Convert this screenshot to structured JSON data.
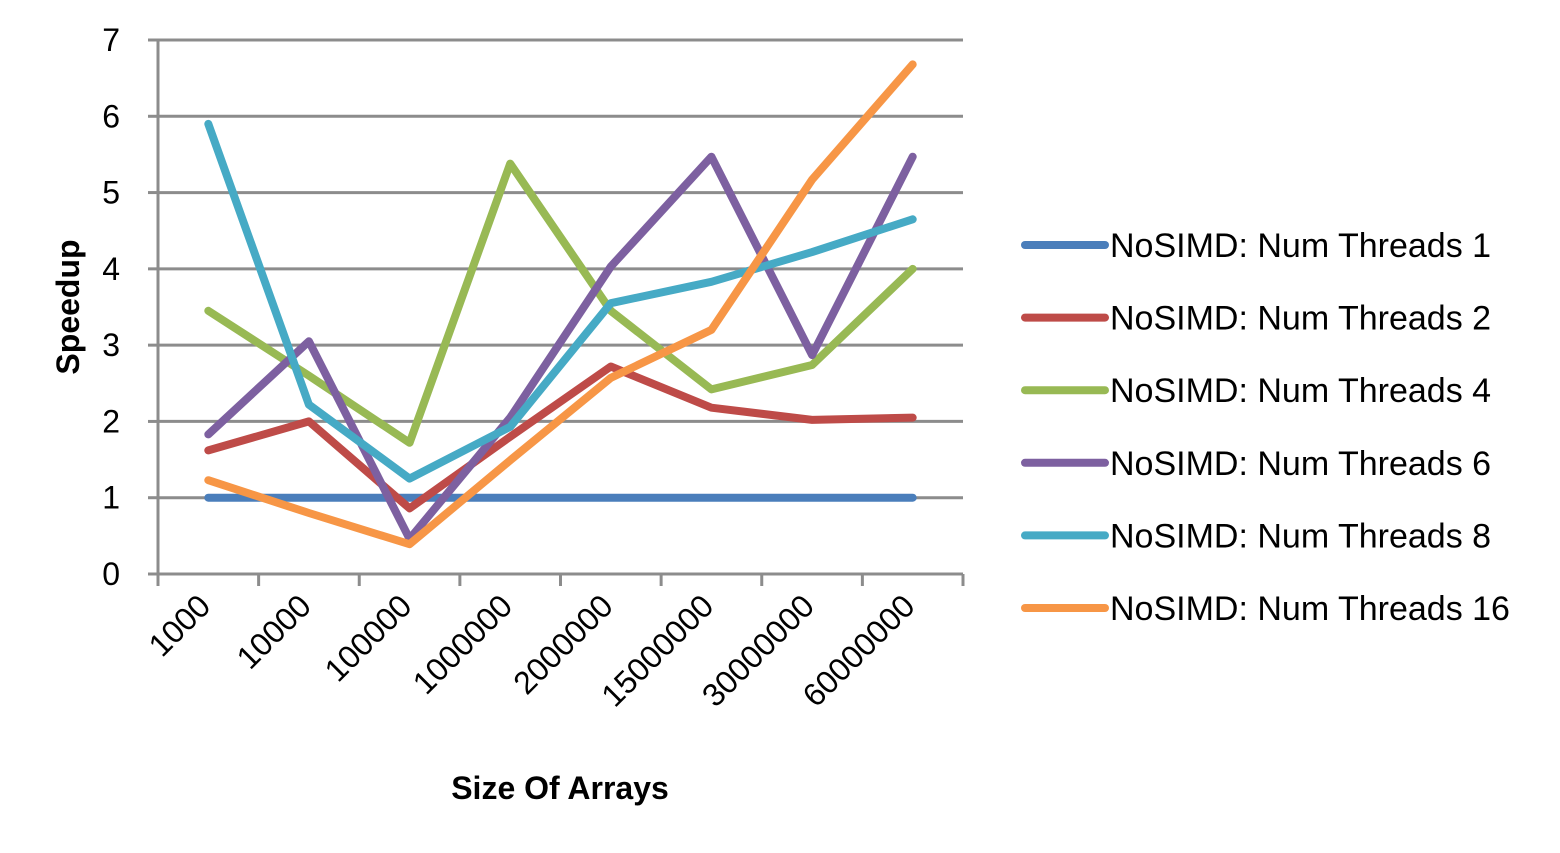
{
  "chart_data": {
    "type": "line",
    "title": "",
    "xlabel": "Size Of Arrays",
    "ylabel": "Speedup",
    "categories": [
      "1000",
      "10000",
      "100000",
      "1000000",
      "2000000",
      "15000000",
      "30000000",
      "60000000"
    ],
    "ylim": [
      0,
      7
    ],
    "yticks": [
      0,
      1,
      2,
      3,
      4,
      5,
      6,
      7
    ],
    "grid": true,
    "legend_position": "right",
    "series": [
      {
        "name": "NoSIMD: Num Threads 1",
        "color": "#4a7ebb",
        "values": [
          1.0,
          1.0,
          1.0,
          1.0,
          1.0,
          1.0,
          1.0,
          1.0
        ]
      },
      {
        "name": "NoSIMD: Num Threads 2",
        "color": "#be4b48",
        "values": [
          1.62,
          2.0,
          0.86,
          1.8,
          2.72,
          2.18,
          2.02,
          2.05
        ]
      },
      {
        "name": "NoSIMD: Num Threads 4",
        "color": "#98b954",
        "values": [
          3.45,
          2.6,
          1.72,
          5.38,
          3.45,
          2.42,
          2.74,
          4.0
        ]
      },
      {
        "name": "NoSIMD: Num Threads 6",
        "color": "#7d60a0",
        "values": [
          1.83,
          3.05,
          0.46,
          2.05,
          4.03,
          5.47,
          2.87,
          5.47
        ]
      },
      {
        "name": "NoSIMD: Num Threads 8",
        "color": "#46aac5",
        "values": [
          5.9,
          2.22,
          1.25,
          1.93,
          3.55,
          3.83,
          4.22,
          4.65
        ]
      },
      {
        "name": "NoSIMD: Num Threads 16",
        "color": "#f79646",
        "values": [
          1.23,
          0.8,
          0.39,
          1.49,
          2.57,
          3.2,
          5.17,
          6.68
        ]
      }
    ]
  }
}
